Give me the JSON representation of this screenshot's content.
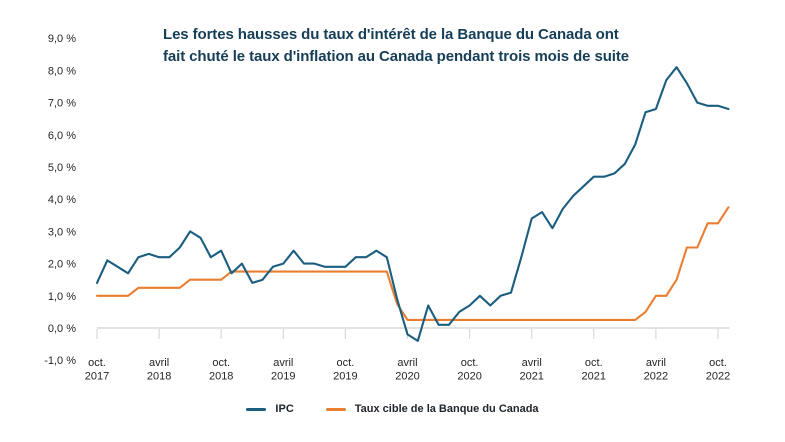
{
  "title": {
    "line1": "Les fortes hausses du taux d'intérêt de la Banque du Canada ont",
    "line2": "fait chuté le taux d'inflation au Canada pendant trois mois de suite"
  },
  "colors": {
    "title_text": "#163e57",
    "ipc_line": "#1b5e7f",
    "target_rate_line": "#e97e30",
    "axis_line": "#d9d9d9",
    "axis_text": "#262626",
    "legend_text": "#21262c",
    "background": "#ffffff"
  },
  "chart_data": {
    "type": "line",
    "title": "Les fortes hausses du taux d'intérêt de la Banque du Canada ont fait chuté le taux d'inflation au Canada pendant trois mois de suite",
    "ylim": [
      -1.0,
      9.0
    ],
    "grid": "x-axis baseline only, no horizontal gridlines",
    "legend_position": "bottom-center",
    "y_ticks": [
      {
        "value": 9,
        "label": "9,0 %"
      },
      {
        "value": 8,
        "label": "8,0 %"
      },
      {
        "value": 7,
        "label": "7,0 %"
      },
      {
        "value": 6,
        "label": "6,0 %"
      },
      {
        "value": 5,
        "label": "5,0 %"
      },
      {
        "value": 4,
        "label": "4,0 %"
      },
      {
        "value": 3,
        "label": "3,0 %"
      },
      {
        "value": 2,
        "label": "2,0 %"
      },
      {
        "value": 1,
        "label": "1,0 %"
      },
      {
        "value": 0,
        "label": "0,0 %"
      },
      {
        "value": -1,
        "label": "-1,0 %"
      }
    ],
    "x_ticks": [
      {
        "month_index": 0,
        "line1": "oct.",
        "line2": "2017"
      },
      {
        "month_index": 6,
        "line1": "avril",
        "line2": "2018"
      },
      {
        "month_index": 12,
        "line1": "oct.",
        "line2": "2018"
      },
      {
        "month_index": 18,
        "line1": "avril",
        "line2": "2019"
      },
      {
        "month_index": 24,
        "line1": "oct.",
        "line2": "2019"
      },
      {
        "month_index": 30,
        "line1": "avril",
        "line2": "2020"
      },
      {
        "month_index": 36,
        "line1": "oct.",
        "line2": "2020"
      },
      {
        "month_index": 42,
        "line1": "avril",
        "line2": "2021"
      },
      {
        "month_index": 48,
        "line1": "oct.",
        "line2": "2021"
      },
      {
        "month_index": 54,
        "line1": "avril",
        "line2": "2022"
      },
      {
        "month_index": 60,
        "line1": "oct.",
        "line2": "2022"
      }
    ],
    "months": [
      "2017-10",
      "2017-11",
      "2017-12",
      "2018-01",
      "2018-02",
      "2018-03",
      "2018-04",
      "2018-05",
      "2018-06",
      "2018-07",
      "2018-08",
      "2018-09",
      "2018-10",
      "2018-11",
      "2018-12",
      "2019-01",
      "2019-02",
      "2019-03",
      "2019-04",
      "2019-05",
      "2019-06",
      "2019-07",
      "2019-08",
      "2019-09",
      "2019-10",
      "2019-11",
      "2019-12",
      "2020-01",
      "2020-02",
      "2020-03",
      "2020-04",
      "2020-05",
      "2020-06",
      "2020-07",
      "2020-08",
      "2020-09",
      "2020-10",
      "2020-11",
      "2020-12",
      "2021-01",
      "2021-02",
      "2021-03",
      "2021-04",
      "2021-05",
      "2021-06",
      "2021-07",
      "2021-08",
      "2021-09",
      "2021-10",
      "2021-11",
      "2021-12",
      "2022-01",
      "2022-02",
      "2022-03",
      "2022-04",
      "2022-05",
      "2022-06",
      "2022-07",
      "2022-08",
      "2022-09",
      "2022-10",
      "2022-11"
    ],
    "series": [
      {
        "name": "IPC",
        "color": "#1b5e7f",
        "values": [
          1.4,
          2.1,
          1.9,
          1.7,
          2.2,
          2.3,
          2.2,
          2.2,
          2.5,
          3.0,
          2.8,
          2.2,
          2.4,
          1.7,
          2.0,
          1.4,
          1.5,
          1.9,
          2.0,
          2.4,
          2.0,
          2.0,
          1.9,
          1.9,
          1.9,
          2.2,
          2.2,
          2.4,
          2.2,
          0.9,
          -0.2,
          -0.4,
          0.7,
          0.1,
          0.1,
          0.5,
          0.7,
          1.0,
          0.7,
          1.0,
          1.1,
          2.2,
          3.4,
          3.6,
          3.1,
          3.7,
          4.1,
          4.4,
          4.7,
          4.7,
          4.8,
          5.1,
          5.7,
          6.7,
          6.8,
          7.7,
          8.1,
          7.6,
          7.0,
          6.9,
          6.9,
          6.8
        ]
      },
      {
        "name": "Taux cible de la Banque du Canada",
        "color": "#e97e30",
        "values": [
          1.0,
          1.0,
          1.0,
          1.0,
          1.25,
          1.25,
          1.25,
          1.25,
          1.25,
          1.5,
          1.5,
          1.5,
          1.5,
          1.75,
          1.75,
          1.75,
          1.75,
          1.75,
          1.75,
          1.75,
          1.75,
          1.75,
          1.75,
          1.75,
          1.75,
          1.75,
          1.75,
          1.75,
          1.75,
          0.75,
          0.25,
          0.25,
          0.25,
          0.25,
          0.25,
          0.25,
          0.25,
          0.25,
          0.25,
          0.25,
          0.25,
          0.25,
          0.25,
          0.25,
          0.25,
          0.25,
          0.25,
          0.25,
          0.25,
          0.25,
          0.25,
          0.25,
          0.25,
          0.5,
          1.0,
          1.0,
          1.5,
          2.5,
          2.5,
          3.25,
          3.25,
          3.75
        ]
      }
    ]
  }
}
